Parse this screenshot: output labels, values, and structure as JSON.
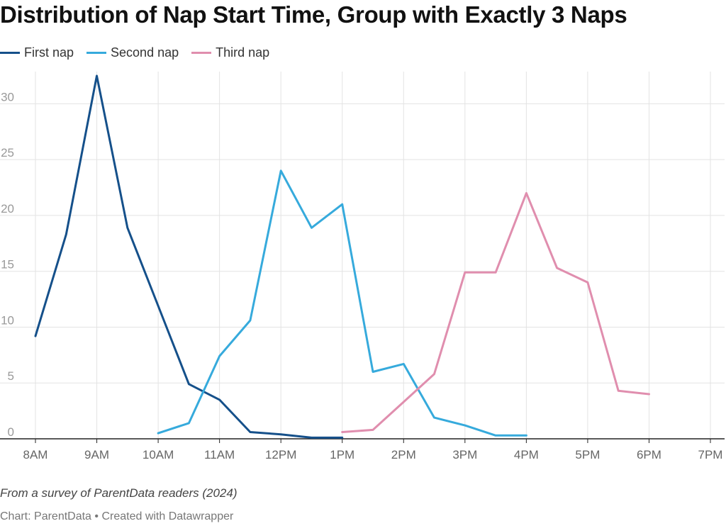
{
  "title": "Distribution of Nap Start Time, Group with Exactly 3 Naps",
  "notes": "From a survey of ParentData readers (2024)",
  "credit": "Chart: ParentData • Created with Datawrapper",
  "colors": {
    "first": "#15508a",
    "second": "#36aadc",
    "third": "#e08eae",
    "grid": "#e3e3e3",
    "axis": "#222222",
    "tick": "#999999"
  },
  "chart_data": {
    "type": "line",
    "title": "Distribution of Nap Start Time, Group with Exactly 3 Naps",
    "xlabel": "",
    "ylabel": "",
    "x_unit": "hours after 8AM",
    "xlim": [
      0,
      11
    ],
    "ylim": [
      0,
      32.5
    ],
    "grid": true,
    "legend_position": "top-left",
    "x_ticks": [
      {
        "value": 0,
        "label": "8AM"
      },
      {
        "value": 1,
        "label": "9AM"
      },
      {
        "value": 2,
        "label": "10AM"
      },
      {
        "value": 3,
        "label": "11AM"
      },
      {
        "value": 4,
        "label": "12PM"
      },
      {
        "value": 5,
        "label": "1PM"
      },
      {
        "value": 6,
        "label": "2PM"
      },
      {
        "value": 7,
        "label": "3PM"
      },
      {
        "value": 8,
        "label": "4PM"
      },
      {
        "value": 9,
        "label": "5PM"
      },
      {
        "value": 10,
        "label": "6PM"
      },
      {
        "value": 11,
        "label": "7PM"
      }
    ],
    "y_ticks": [
      {
        "value": 0,
        "label": "0"
      },
      {
        "value": 5,
        "label": "5"
      },
      {
        "value": 10,
        "label": "10"
      },
      {
        "value": 15,
        "label": "15"
      },
      {
        "value": 20,
        "label": "20"
      },
      {
        "value": 25,
        "label": "25"
      },
      {
        "value": 30,
        "label": "30"
      }
    ],
    "series": [
      {
        "name": "First nap",
        "color": "#15508a",
        "x": [
          0,
          0.5,
          1,
          1.5,
          2,
          2.5,
          3,
          3.5,
          4,
          4.5,
          5
        ],
        "y": [
          9.2,
          18.3,
          32.5,
          18.9,
          11.9,
          4.9,
          3.5,
          0.6,
          0.4,
          0.1,
          0.1
        ]
      },
      {
        "name": "Second nap",
        "color": "#36aadc",
        "x": [
          2,
          2.5,
          3,
          3.5,
          4,
          4.5,
          5,
          5.5,
          6,
          6.5,
          7,
          7.5,
          8
        ],
        "y": [
          0.5,
          1.4,
          7.4,
          10.6,
          24.0,
          18.9,
          21.0,
          6.0,
          6.7,
          1.9,
          1.2,
          0.3,
          0.3
        ]
      },
      {
        "name": "Third nap",
        "color": "#e08eae",
        "x": [
          5,
          5.5,
          6,
          6.5,
          7,
          7.5,
          8,
          8.5,
          9,
          9.5,
          10
        ],
        "y": [
          0.6,
          0.8,
          3.3,
          5.8,
          14.9,
          14.9,
          22.0,
          15.3,
          14.0,
          4.3,
          4.0
        ]
      }
    ]
  }
}
